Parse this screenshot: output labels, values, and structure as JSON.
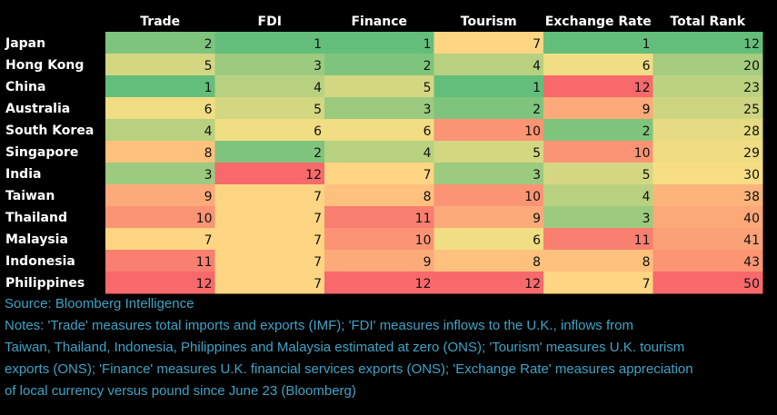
{
  "chart_data": {
    "type": "heatmap",
    "title": "",
    "columns": [
      "Trade",
      "FDI",
      "Finance",
      "Tourism",
      "Exchange Rate",
      "Total Rank"
    ],
    "rows": [
      "Japan",
      "Hong Kong",
      "China",
      "Australia",
      "South Korea",
      "Singapore",
      "India",
      "Taiwan",
      "Thailand",
      "Malaysia",
      "Indonesia",
      "Philippines"
    ],
    "values": [
      [
        2,
        1,
        1,
        7,
        1,
        12
      ],
      [
        5,
        3,
        2,
        4,
        6,
        20
      ],
      [
        1,
        4,
        5,
        1,
        12,
        23
      ],
      [
        6,
        5,
        3,
        2,
        9,
        25
      ],
      [
        4,
        6,
        6,
        10,
        2,
        28
      ],
      [
        8,
        2,
        4,
        5,
        10,
        29
      ],
      [
        3,
        12,
        7,
        3,
        5,
        30
      ],
      [
        9,
        7,
        8,
        10,
        4,
        38
      ],
      [
        10,
        7,
        11,
        9,
        3,
        40
      ],
      [
        7,
        7,
        10,
        6,
        11,
        41
      ],
      [
        11,
        7,
        9,
        8,
        8,
        43
      ],
      [
        12,
        7,
        12,
        12,
        7,
        50
      ]
    ],
    "color_scale": {
      "low": "#63be7b",
      "mid": "#ffe084",
      "high": "#f8696b"
    },
    "column_ranges": [
      [
        1,
        12
      ],
      [
        1,
        12
      ],
      [
        1,
        12
      ],
      [
        1,
        12
      ],
      [
        1,
        12
      ],
      [
        12,
        50
      ]
    ]
  },
  "footer": {
    "source": "Source: Bloomberg Intelligence",
    "notes_lines": [
      "Notes: 'Trade' measures total imports and exports (IMF); 'FDI' measures inflows to the U.K., inflows from",
      "Taiwan, Thailand, Indonesia, Philippines and Malaysia estimated at zero (ONS); 'Tourism' measures U.K. tourism",
      "exports (ONS); 'Finance' measures U.K. financial services exports (ONS); 'Exchange Rate' measures appreciation",
      "of local currency versus pound since June 23 (Bloomberg)"
    ]
  }
}
